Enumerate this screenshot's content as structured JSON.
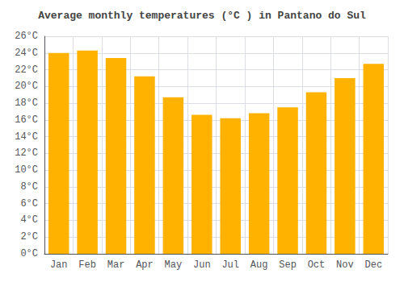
{
  "chart_data": {
    "type": "bar",
    "title": "Average monthly temperatures (°C ) in Pantano do Sul",
    "categories": [
      "Jan",
      "Feb",
      "Mar",
      "Apr",
      "May",
      "Jun",
      "Jul",
      "Aug",
      "Sep",
      "Oct",
      "Nov",
      "Dec"
    ],
    "values": [
      24.0,
      24.3,
      23.4,
      21.2,
      18.7,
      16.6,
      16.2,
      16.8,
      17.5,
      19.3,
      21.0,
      22.7
    ],
    "color": "#FFB300",
    "ylim": [
      0,
      26
    ],
    "yticks": [
      {
        "value": 0,
        "label": "0°C"
      },
      {
        "value": 2,
        "label": "2°C"
      },
      {
        "value": 4,
        "label": "4°C"
      },
      {
        "value": 6,
        "label": "6°C"
      },
      {
        "value": 8,
        "label": "8°C"
      },
      {
        "value": 10,
        "label": "10°C"
      },
      {
        "value": 12,
        "label": "12°C"
      },
      {
        "value": 14,
        "label": "14°C"
      },
      {
        "value": 16,
        "label": "16°C"
      },
      {
        "value": 18,
        "label": "18°C"
      },
      {
        "value": 20,
        "label": "20°C"
      },
      {
        "value": 22,
        "label": "22°C"
      },
      {
        "value": 24,
        "label": "24°C"
      },
      {
        "value": 26,
        "label": "26°C"
      }
    ],
    "grid": true
  }
}
